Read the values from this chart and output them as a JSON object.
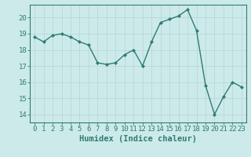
{
  "x": [
    0,
    1,
    2,
    3,
    4,
    5,
    6,
    7,
    8,
    9,
    10,
    11,
    12,
    13,
    14,
    15,
    16,
    17,
    18,
    19,
    20,
    21,
    22,
    23
  ],
  "y": [
    18.8,
    18.5,
    18.9,
    19.0,
    18.8,
    18.5,
    18.3,
    17.2,
    17.1,
    17.2,
    17.7,
    18.0,
    17.0,
    18.5,
    19.7,
    19.9,
    20.1,
    20.5,
    19.2,
    15.8,
    14.0,
    15.1,
    16.0,
    15.7
  ],
  "line_color": "#2e7d6e",
  "marker": "D",
  "marker_size": 2.0,
  "bg_color": "#cdeaea",
  "grid_color": "#b8d8d8",
  "xlabel": "Humidex (Indice chaleur)",
  "ylabel": "",
  "xlim": [
    -0.5,
    23.5
  ],
  "ylim": [
    13.5,
    20.8
  ],
  "yticks": [
    14,
    15,
    16,
    17,
    18,
    19,
    20
  ],
  "xticks": [
    0,
    1,
    2,
    3,
    4,
    5,
    6,
    7,
    8,
    9,
    10,
    11,
    12,
    13,
    14,
    15,
    16,
    17,
    18,
    19,
    20,
    21,
    22,
    23
  ],
  "tick_label_fontsize": 6.5,
  "xlabel_fontsize": 7.5,
  "line_width": 1.0
}
